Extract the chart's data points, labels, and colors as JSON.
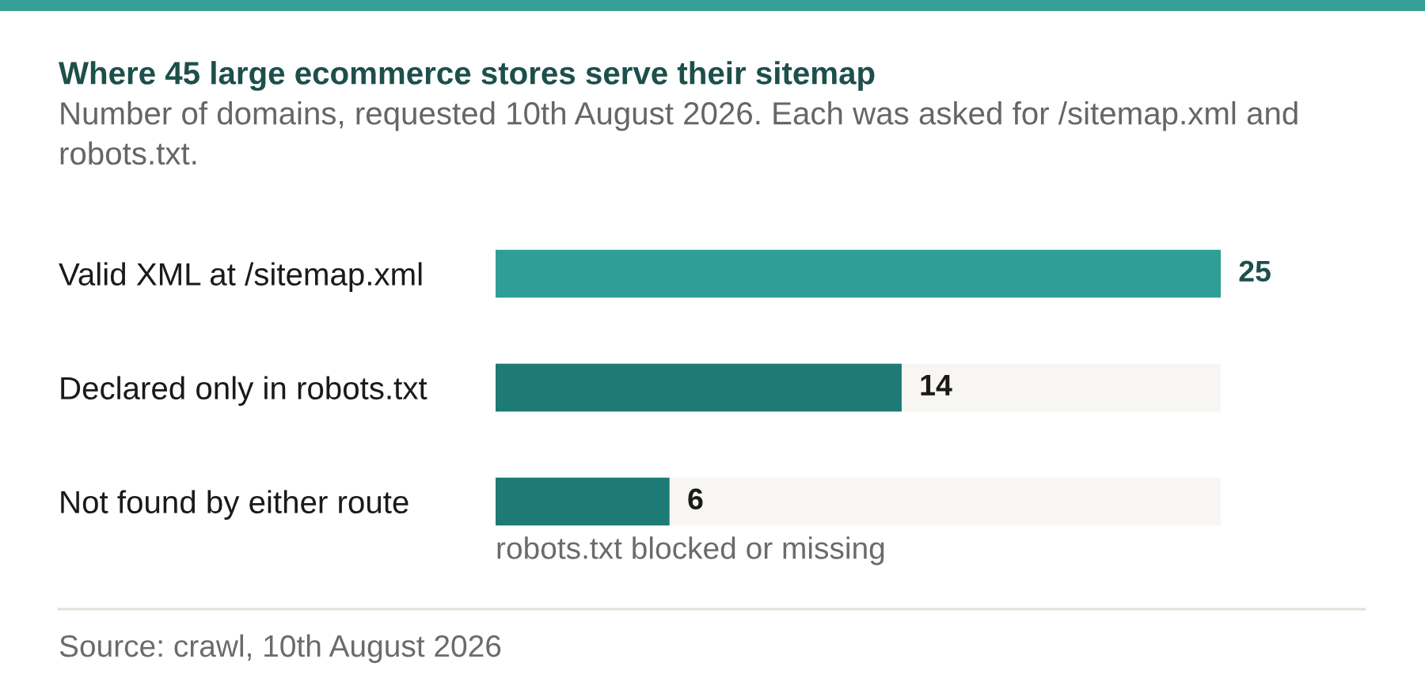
{
  "chart_data": {
    "type": "bar",
    "orientation": "horizontal",
    "stacked": true,
    "title": "Where 45 large ecommerce stores serve their sitemap",
    "subtitle": "Number of domains, requested 10th August 2026. Each was asked for /sitemap.xml and robots.txt.",
    "categories": [
      "Valid XML at /sitemap.xml",
      "Declared only in robots.txt",
      "Not found by either route"
    ],
    "series": [
      {
        "colors": [
          "#2e9e96",
          "#1e7a74",
          "#1e7a74"
        ],
        "values": [
          25,
          14,
          6
        ],
        "value_labels": [
          "25",
          "14",
          "6"
        ]
      },
      {
        "color": "#f7f6f2",
        "values": [
          null,
          11,
          19
        ]
      }
    ],
    "annotations": [
      {
        "text": "robots.txt blocked or missing",
        "x": 0,
        "y": "Not found by either route"
      },
      "Source: crawl, 10th August 2026"
    ]
  }
}
